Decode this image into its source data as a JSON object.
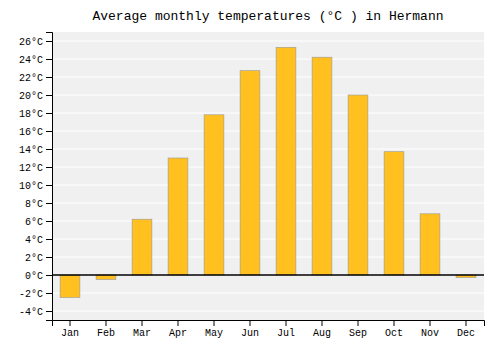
{
  "chart_data": {
    "type": "bar",
    "title": "Average monthly temperatures (°C ) in Hermann",
    "categories": [
      "Jan",
      "Feb",
      "Mar",
      "Apr",
      "May",
      "Jun",
      "Jul",
      "Aug",
      "Sep",
      "Oct",
      "Nov",
      "Dec"
    ],
    "values": [
      -2.5,
      -0.5,
      6.2,
      13.0,
      17.8,
      22.7,
      25.3,
      24.2,
      20.0,
      13.7,
      6.8,
      -0.3
    ],
    "color": "#FFC020",
    "ylim": [
      -5,
      27
    ],
    "yticks": [
      {
        "value": -4,
        "label": "-4°C"
      },
      {
        "value": -2,
        "label": "-2°C"
      },
      {
        "value": 0,
        "label": "0°C"
      },
      {
        "value": 2,
        "label": "2°C"
      },
      {
        "value": 4,
        "label": "4°C"
      },
      {
        "value": 6,
        "label": "6°C"
      },
      {
        "value": 8,
        "label": "8°C"
      },
      {
        "value": 10,
        "label": "10°C"
      },
      {
        "value": 12,
        "label": "12°C"
      },
      {
        "value": 14,
        "label": "14°C"
      },
      {
        "value": 16,
        "label": "16°C"
      },
      {
        "value": 18,
        "label": "18°C"
      },
      {
        "value": 20,
        "label": "20°C"
      },
      {
        "value": 22,
        "label": "22°C"
      },
      {
        "value": 24,
        "label": "24°C"
      },
      {
        "value": 26,
        "label": "26°C"
      }
    ],
    "grid": true
  }
}
